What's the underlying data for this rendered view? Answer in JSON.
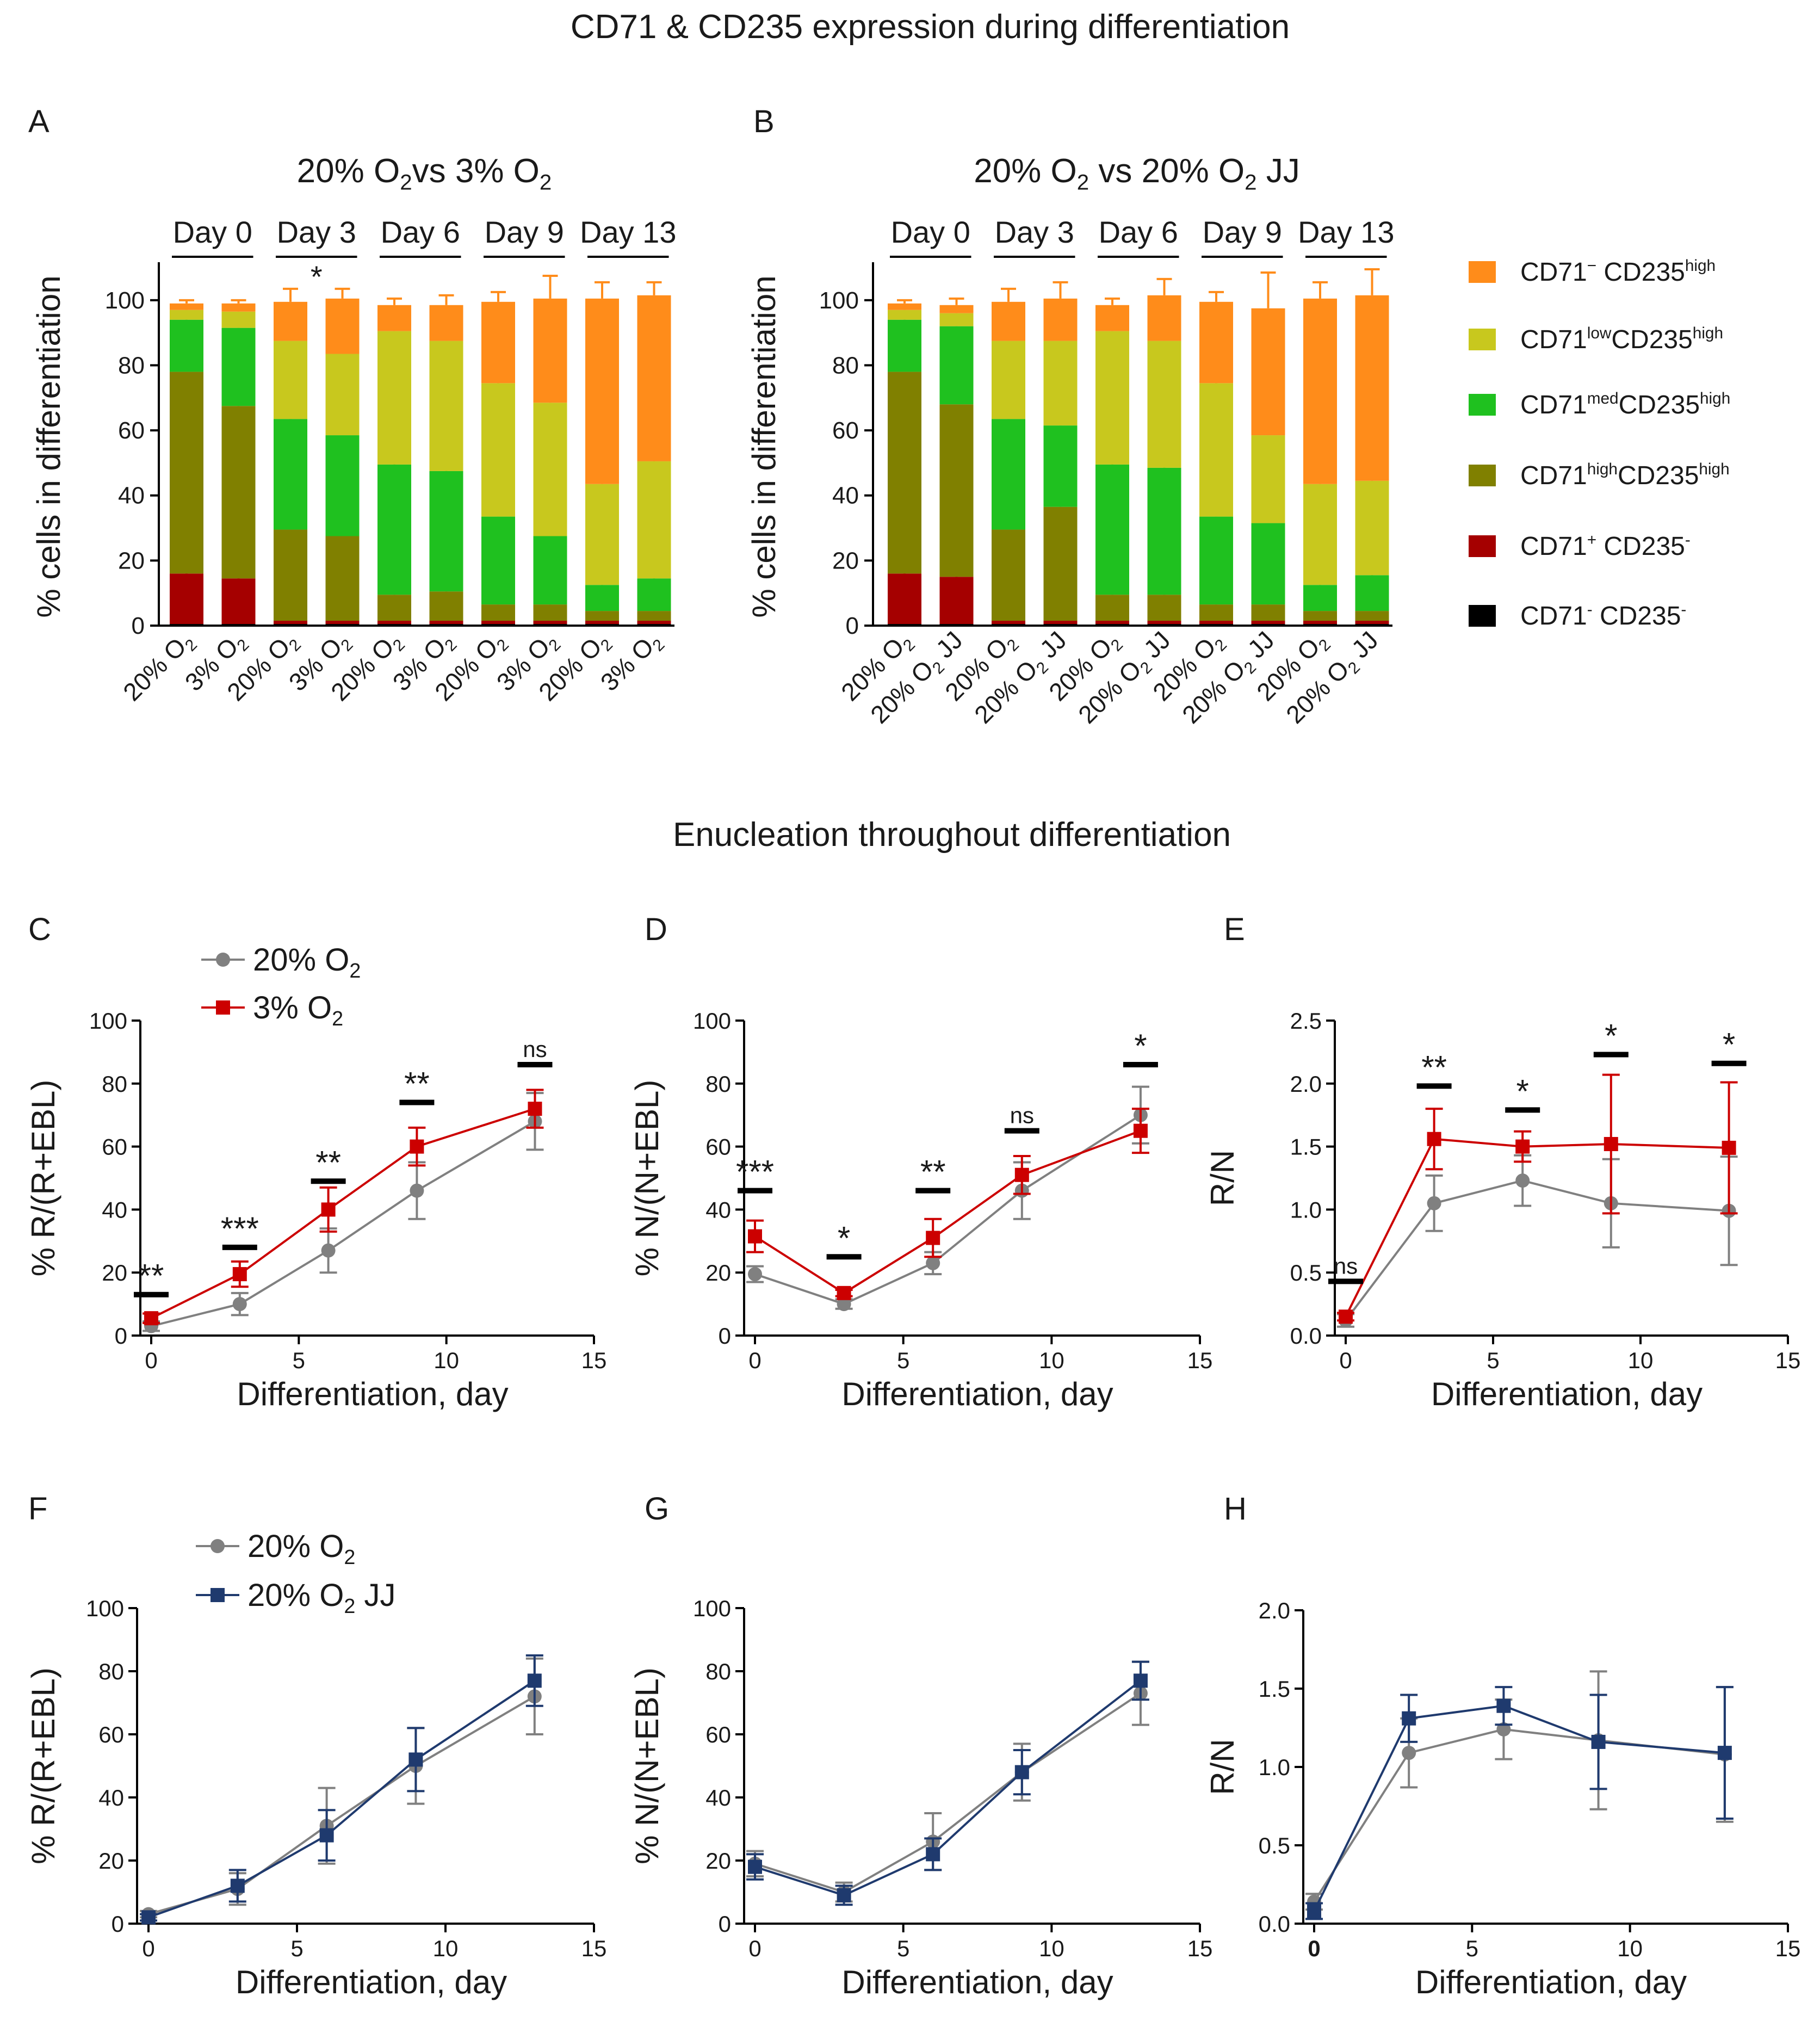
{
  "titles": {
    "top": "CD71 & CD235 expression during differentiation",
    "middle": "Enucleation throughout differentiation"
  },
  "legend_markers": {
    "o2_20": "20% O",
    "o2_3": "3% O",
    "o2_20jj": "20% O",
    "sub2": "2",
    "jj": " JJ"
  },
  "stack_legend": [
    {
      "key": "neg_high",
      "base": "CD71",
      "sup1": "−",
      "mid": " CD235",
      "sup2": "high",
      "color": "#FF8C1A"
    },
    {
      "key": "low_high",
      "base": "CD71",
      "sup1": "low",
      "mid": "CD235",
      "sup2": "high",
      "color": "#C8C81E"
    },
    {
      "key": "med_high",
      "base": "CD71",
      "sup1": "med",
      "mid": "CD235",
      "sup2": "high",
      "color": "#1FC11F"
    },
    {
      "key": "high_high",
      "base": "CD71",
      "sup1": "high",
      "mid": "CD235",
      "sup2": "high",
      "color": "#808000"
    },
    {
      "key": "pos_neg",
      "base": "CD71",
      "sup1": "+",
      "mid": " CD235",
      "sup2": "-",
      "color": "#A50000"
    },
    {
      "key": "neg_neg",
      "base": "CD71",
      "sup1": "-",
      "mid": " CD235",
      "sup2": "-",
      "color": "#000000"
    }
  ],
  "chart_data": [
    {
      "panel": "A",
      "type": "bar",
      "stacked": true,
      "title_parts": [
        "20% O",
        "2",
        "vs 3% O",
        "2"
      ],
      "ylabel": "% cells in differentiation",
      "ylim": [
        0,
        110
      ],
      "yticks": [
        0,
        20,
        40,
        60,
        80,
        100
      ],
      "groups": [
        "Day 0",
        "Day 3",
        "Day 6",
        "Day 9",
        "Day 13"
      ],
      "categories": [
        "20% O2",
        "3% O2",
        "20% O2",
        "3% O2",
        "20% O2",
        "3% O2",
        "20% O2",
        "3% O2",
        "20% O2",
        "3% O2"
      ],
      "cat_labels": [
        [
          "20% O",
          "2"
        ],
        [
          "3% O",
          "2"
        ],
        [
          "20% O",
          "2"
        ],
        [
          "3% O",
          "2"
        ],
        [
          "20% O",
          "2"
        ],
        [
          "3% O",
          "2"
        ],
        [
          "20% O",
          "2"
        ],
        [
          "3% O",
          "2"
        ],
        [
          "20% O",
          "2"
        ],
        [
          "3% O",
          "2"
        ]
      ],
      "annotations": [
        {
          "text": "*",
          "group": "Day 3"
        }
      ],
      "series": [
        {
          "name": "CD71- CD235-",
          "key": "neg_neg",
          "values": [
            0.5,
            0.5,
            0.5,
            0.5,
            0.5,
            0.5,
            0.5,
            0.5,
            0.5,
            0.5
          ]
        },
        {
          "name": "CD71+ CD235-",
          "key": "pos_neg",
          "values": [
            15.5,
            14,
            1,
            1,
            1,
            1,
            1,
            1,
            1,
            1
          ],
          "err": [
            4.5,
            5.5,
            0,
            0,
            0,
            0,
            0,
            0,
            0,
            0
          ]
        },
        {
          "name": "CD71high CD235high",
          "key": "high_high",
          "values": [
            62,
            53,
            28,
            26,
            8,
            9,
            5,
            5,
            3,
            3
          ],
          "err": [
            0,
            7,
            10,
            6,
            1,
            1,
            1,
            1,
            1,
            1
          ]
        },
        {
          "name": "CD71med CD235high",
          "key": "med_high",
          "values": [
            16,
            24,
            34,
            31,
            40,
            37,
            27,
            21,
            8,
            10
          ],
          "err": [
            2,
            3,
            6,
            5,
            4,
            4,
            3,
            3,
            2,
            1
          ]
        },
        {
          "name": "CD71low CD235high",
          "key": "low_high",
          "values": [
            3,
            5,
            24,
            25,
            41,
            40,
            41,
            41,
            31,
            36
          ],
          "err": [
            1,
            1,
            3,
            4,
            2,
            1,
            1,
            2,
            2,
            3
          ]
        },
        {
          "name": "CD71- CD235high",
          "key": "neg_high",
          "values": [
            2,
            2.5,
            12,
            17,
            8,
            11,
            25,
            32,
            57,
            51
          ],
          "err": [
            1,
            1,
            4,
            3,
            2,
            3,
            3,
            7,
            5,
            4
          ]
        }
      ]
    },
    {
      "panel": "B",
      "type": "bar",
      "stacked": true,
      "title_parts": [
        "20% O",
        "2",
        " vs 20% O",
        "2",
        " JJ"
      ],
      "ylabel": "% cells in differentiation",
      "ylim": [
        0,
        110
      ],
      "yticks": [
        0,
        20,
        40,
        60,
        80,
        100
      ],
      "groups": [
        "Day 0",
        "Day 3",
        "Day 6",
        "Day 9",
        "Day 13"
      ],
      "categories": [
        "20% O2",
        "20% O2 JJ",
        "20% O2",
        "20% O2 JJ",
        "20% O2",
        "20% O2 JJ",
        "20% O2",
        "20% O2 JJ",
        "20% O2",
        "20% O2 JJ"
      ],
      "cat_labels": [
        [
          "20% O",
          "2"
        ],
        [
          "20% O",
          "2",
          " JJ"
        ],
        [
          "20% O",
          "2"
        ],
        [
          "20% O",
          "2",
          " JJ"
        ],
        [
          "20% O",
          "2"
        ],
        [
          "20% O",
          "2",
          " JJ"
        ],
        [
          "20% O",
          "2"
        ],
        [
          "20% O",
          "2",
          " JJ"
        ],
        [
          "20% O",
          "2"
        ],
        [
          "20% O",
          "2",
          " JJ"
        ]
      ],
      "annotations": [],
      "series": [
        {
          "name": "CD71- CD235-",
          "key": "neg_neg",
          "values": [
            0.5,
            0.5,
            0.5,
            0.5,
            0.5,
            0.5,
            0.5,
            0.5,
            0.5,
            0.5
          ]
        },
        {
          "name": "CD71+ CD235-",
          "key": "pos_neg",
          "values": [
            15.5,
            14.5,
            1,
            1,
            1,
            1,
            1,
            1,
            1,
            1
          ],
          "err": [
            4.5,
            4.5,
            0,
            0,
            0,
            0,
            0,
            0,
            0,
            0
          ]
        },
        {
          "name": "CD71high CD235high",
          "key": "high_high",
          "values": [
            62,
            53,
            28,
            35,
            8,
            8,
            5,
            5,
            3,
            3
          ],
          "err": [
            0,
            0,
            10,
            6,
            1,
            2,
            1,
            2,
            1,
            1
          ]
        },
        {
          "name": "CD71med CD235high",
          "key": "med_high",
          "values": [
            16,
            24,
            34,
            25,
            40,
            39,
            27,
            25,
            8,
            11
          ],
          "err": [
            2,
            3,
            6,
            3,
            4,
            7,
            3,
            7,
            2,
            4
          ]
        },
        {
          "name": "CD71low CD235high",
          "key": "low_high",
          "values": [
            3,
            4,
            24,
            26,
            41,
            39,
            41,
            27,
            31,
            29
          ],
          "err": [
            1,
            1,
            3,
            2,
            2,
            5,
            1,
            2,
            2,
            2
          ]
        },
        {
          "name": "CD71- CD235high",
          "key": "neg_high",
          "values": [
            2,
            2.5,
            12,
            13,
            8,
            14,
            25,
            39,
            57,
            57
          ],
          "err": [
            1,
            2,
            4,
            5,
            2,
            5,
            3,
            11,
            5,
            8
          ]
        }
      ]
    },
    {
      "panel": "C",
      "type": "line",
      "xlabel": "Differentiation, day",
      "ylabel": "% R/(R+EBL)",
      "xlim": [
        0,
        15
      ],
      "xticks": [
        0,
        5,
        10,
        15
      ],
      "ylim": [
        0,
        100
      ],
      "yticks": [
        0,
        20,
        40,
        60,
        80,
        100
      ],
      "x": [
        0,
        3,
        6,
        9,
        13
      ],
      "series": [
        {
          "name": "20% O2",
          "color": "#808080",
          "marker": "circle",
          "values": [
            3,
            10,
            27,
            46,
            68
          ],
          "err": [
            1.5,
            3.5,
            7,
            9,
            9
          ]
        },
        {
          "name": "3% O2",
          "color": "#CC0000",
          "marker": "square",
          "values": [
            5.5,
            19.5,
            40,
            60,
            72
          ],
          "err": [
            1.5,
            4,
            7,
            6,
            6
          ]
        }
      ],
      "annotations": [
        {
          "x": 0,
          "text": "**",
          "y": 13
        },
        {
          "x": 3,
          "text": "***",
          "y": 28
        },
        {
          "x": 6,
          "text": "**",
          "y": 49
        },
        {
          "x": 9,
          "text": "**",
          "y": 74
        },
        {
          "x": 13,
          "text": "ns",
          "y": 86
        }
      ]
    },
    {
      "panel": "D",
      "type": "line",
      "xlabel": "Differentiation, day",
      "ylabel": "% N/(N+EBL)",
      "xlim": [
        0,
        15
      ],
      "xticks": [
        0,
        5,
        10,
        15
      ],
      "ylim": [
        0,
        100
      ],
      "yticks": [
        0,
        20,
        40,
        60,
        80,
        100
      ],
      "x": [
        0,
        3,
        6,
        9,
        13
      ],
      "series": [
        {
          "name": "20% O2",
          "color": "#808080",
          "marker": "circle",
          "values": [
            19.5,
            10,
            23,
            46,
            70
          ],
          "err": [
            2.5,
            1.5,
            3.5,
            9,
            9
          ]
        },
        {
          "name": "3% O2",
          "color": "#CC0000",
          "marker": "square",
          "values": [
            31.5,
            13.5,
            31,
            51,
            65
          ],
          "err": [
            5,
            1,
            6,
            6,
            7
          ]
        }
      ],
      "annotations": [
        {
          "x": 0,
          "text": "***",
          "y": 46
        },
        {
          "x": 3,
          "text": "*",
          "y": 25
        },
        {
          "x": 6,
          "text": "**",
          "y": 46
        },
        {
          "x": 9,
          "text": "ns",
          "y": 65
        },
        {
          "x": 13,
          "text": "*",
          "y": 86
        }
      ]
    },
    {
      "panel": "E",
      "type": "line",
      "xlabel": "Differentiation, day",
      "ylabel": "R/N",
      "xlim": [
        0,
        15
      ],
      "xticks": [
        0,
        5,
        10,
        15
      ],
      "ylim": [
        0,
        2.5
      ],
      "yticks": [
        0.0,
        0.5,
        1.0,
        1.5,
        2.0,
        2.5
      ],
      "x": [
        0,
        3,
        6,
        9,
        13
      ],
      "series": [
        {
          "name": "20% O2",
          "color": "#808080",
          "marker": "circle",
          "values": [
            0.12,
            1.05,
            1.23,
            1.05,
            0.99
          ],
          "err": [
            0.05,
            0.22,
            0.2,
            0.35,
            0.43
          ]
        },
        {
          "name": "3% O2",
          "color": "#CC0000",
          "marker": "square",
          "values": [
            0.15,
            1.56,
            1.5,
            1.52,
            1.49
          ],
          "err": [
            0.03,
            0.24,
            0.12,
            0.55,
            0.52
          ]
        }
      ],
      "annotations": [
        {
          "x": 0,
          "text": "ns",
          "y": 0.43
        },
        {
          "x": 3,
          "text": "**",
          "y": 1.98
        },
        {
          "x": 6,
          "text": "*",
          "y": 1.79
        },
        {
          "x": 9,
          "text": "*",
          "y": 2.23
        },
        {
          "x": 13,
          "text": "*",
          "y": 2.16
        }
      ]
    },
    {
      "panel": "F",
      "type": "line",
      "xlabel": "Differentiation, day",
      "ylabel": "% R/(R+EBL)",
      "xlim": [
        0,
        15
      ],
      "xticks": [
        0,
        5,
        10,
        15
      ],
      "ylim": [
        0,
        100
      ],
      "yticks": [
        0,
        20,
        40,
        60,
        80,
        100
      ],
      "x": [
        0,
        3,
        6,
        9,
        13
      ],
      "series": [
        {
          "name": "20% O2",
          "color": "#808080",
          "marker": "circle",
          "values": [
            3,
            11,
            31,
            50,
            72
          ],
          "err": [
            1,
            5,
            12,
            12,
            12
          ]
        },
        {
          "name": "20% O2 JJ",
          "color": "#1F3A6E",
          "marker": "square",
          "values": [
            2,
            12,
            28,
            52,
            77
          ],
          "err": [
            1,
            5,
            8,
            10,
            8
          ]
        }
      ],
      "annotations": []
    },
    {
      "panel": "G",
      "type": "line",
      "xlabel": "Differentiation, day",
      "ylabel": "% N/(N+EBL)",
      "xlim": [
        0,
        15
      ],
      "xticks": [
        0,
        5,
        10,
        15
      ],
      "ylim": [
        0,
        100
      ],
      "yticks": [
        0,
        20,
        40,
        60,
        80,
        100
      ],
      "x": [
        0,
        3,
        6,
        9,
        13
      ],
      "series": [
        {
          "name": "20% O2",
          "color": "#808080",
          "marker": "circle",
          "values": [
            19,
            10,
            26,
            48,
            73
          ],
          "err": [
            4,
            3,
            9,
            9,
            10
          ]
        },
        {
          "name": "20% O2 JJ",
          "color": "#1F3A6E",
          "marker": "square",
          "values": [
            18,
            9,
            22,
            48,
            77
          ],
          "err": [
            4,
            3,
            5,
            7,
            6
          ]
        }
      ],
      "annotations": []
    },
    {
      "panel": "H",
      "type": "line",
      "xlabel": "Differentiation, day",
      "ylabel": "R/N",
      "xlim": [
        0,
        15
      ],
      "xticks": [
        0,
        5,
        10,
        15
      ],
      "ylim": [
        0,
        2.0
      ],
      "yticks": [
        0.0,
        0.5,
        1.0,
        1.5,
        2.0
      ],
      "x": [
        0,
        3,
        6,
        9,
        13
      ],
      "series": [
        {
          "name": "20% O2",
          "color": "#808080",
          "marker": "circle",
          "values": [
            0.14,
            1.09,
            1.24,
            1.17,
            1.08
          ],
          "err": [
            0.05,
            0.22,
            0.19,
            0.44,
            0.43
          ]
        },
        {
          "name": "20% O2 JJ",
          "color": "#1F3A6E",
          "marker": "square",
          "values": [
            0.08,
            1.31,
            1.39,
            1.16,
            1.09
          ],
          "err": [
            0.05,
            0.15,
            0.12,
            0.3,
            0.42
          ]
        }
      ],
      "annotations": []
    }
  ]
}
